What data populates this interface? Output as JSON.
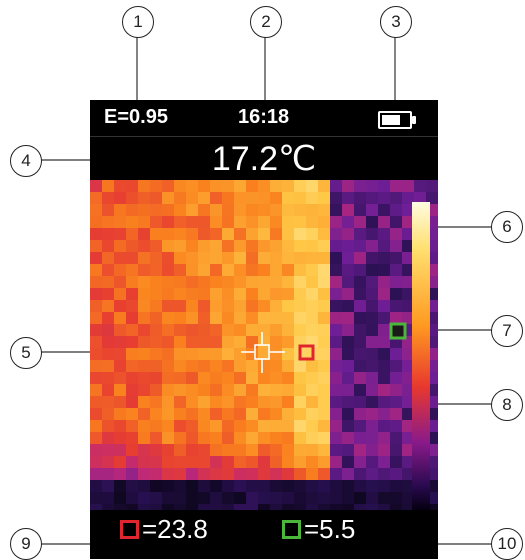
{
  "status_bar": {
    "emissivity": "E=0.95",
    "time": "16:18",
    "battery_icon": "battery-icon"
  },
  "center_temperature": "17.2℃",
  "bottom_bar": {
    "max_value": "=23.8",
    "min_value": "=5.5",
    "max_color": "#e0262c",
    "min_color": "#4cb53b"
  },
  "callouts": [
    "1",
    "2",
    "3",
    "4",
    "5",
    "6",
    "7",
    "8",
    "9",
    "10"
  ]
}
